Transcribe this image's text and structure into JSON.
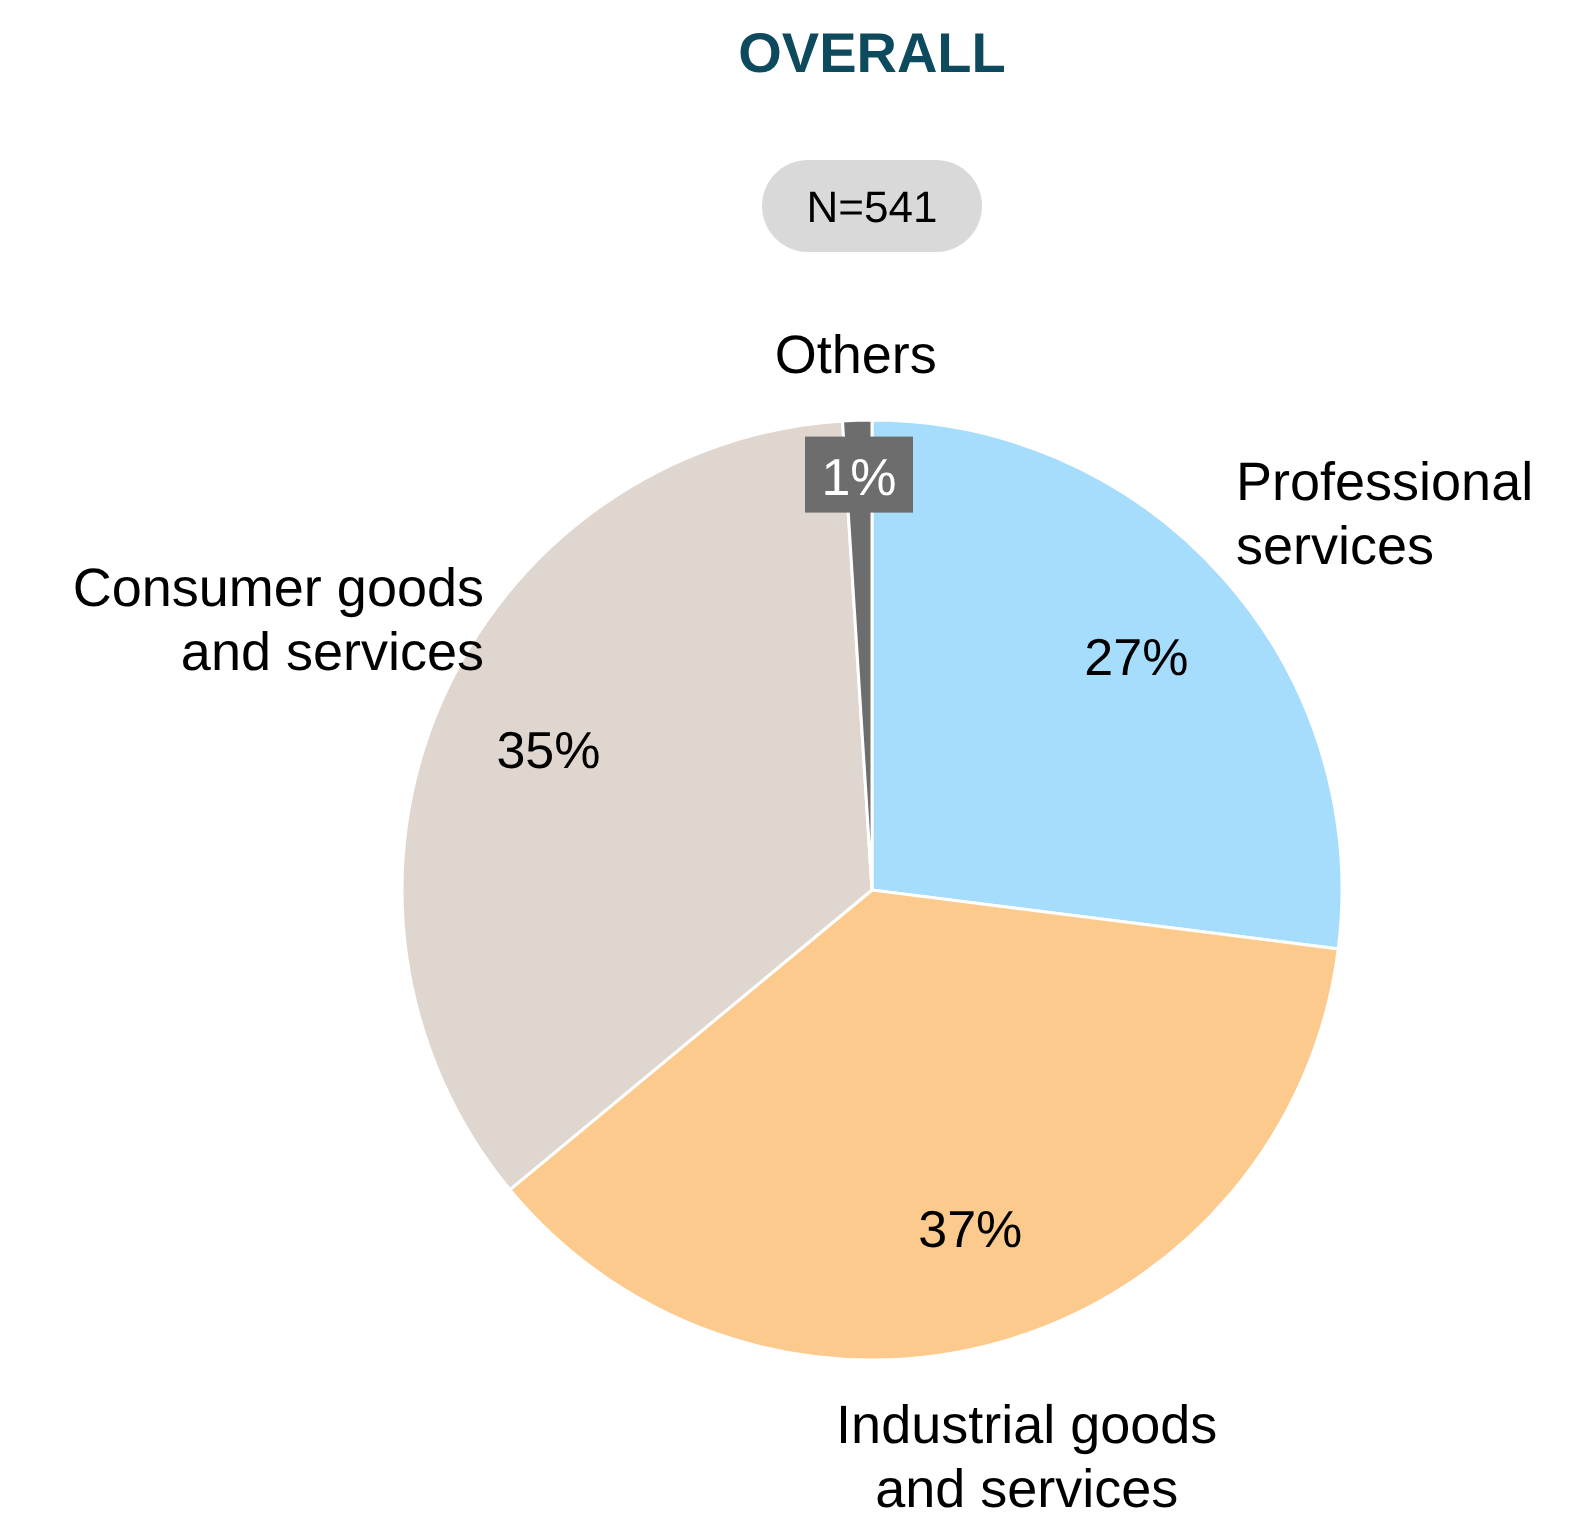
{
  "chart_data": {
    "type": "pie",
    "title": "OVERALL",
    "annotations": [
      "N=541"
    ],
    "categories": [
      "Professional services",
      "Industrial goods and services",
      "Consumer goods and services",
      "Others"
    ],
    "values": [
      27,
      37,
      35,
      1
    ],
    "value_labels": [
      "27%",
      "37%",
      "35%",
      "1%"
    ],
    "colors": [
      "#a6dcfc",
      "#fdca8d",
      "#dfd6d0",
      "#6d6d6d"
    ]
  }
}
